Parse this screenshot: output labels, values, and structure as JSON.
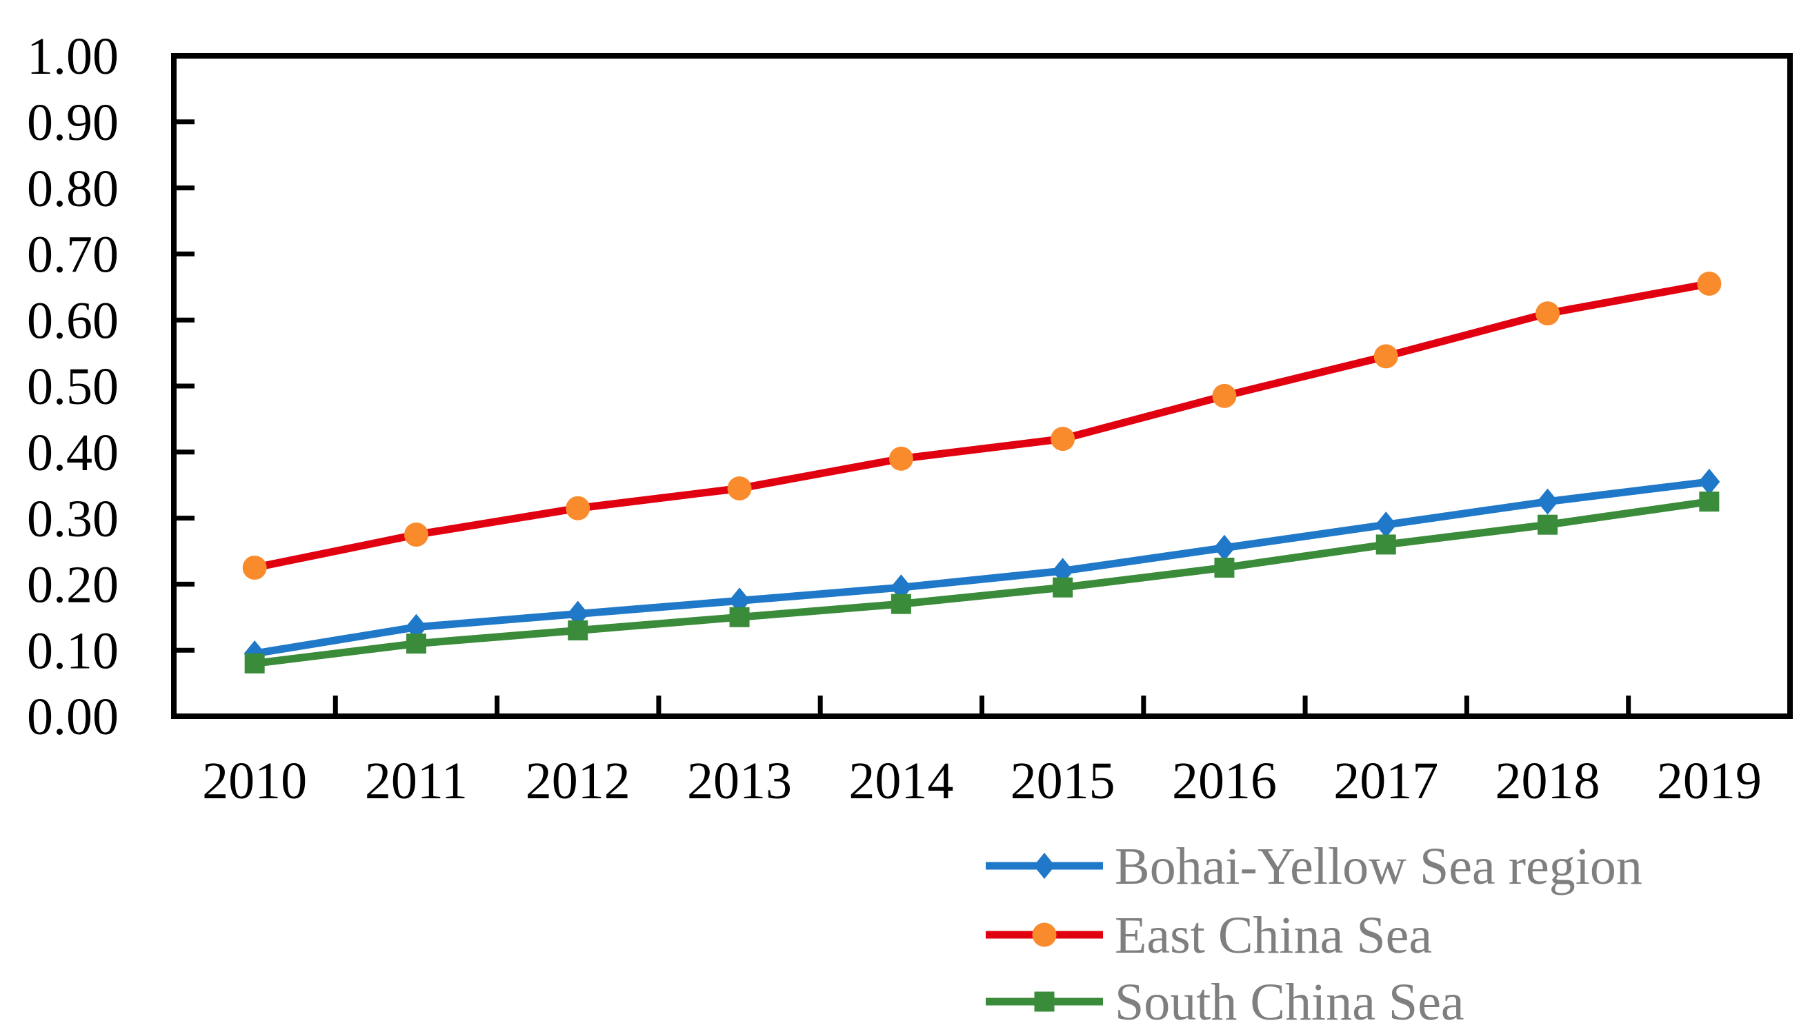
{
  "chart_data": {
    "type": "line",
    "title": "",
    "xlabel": "",
    "ylabel": "",
    "x_categories": [
      "2010",
      "2011",
      "2012",
      "2013",
      "2014",
      "2015",
      "2016",
      "2017",
      "2018",
      "2019"
    ],
    "series": [
      {
        "name": "Bohai-Yellow Sea region",
        "marker": "diamond",
        "line_color": "#1f78c8",
        "marker_color": "#1f78c8",
        "values": [
          0.095,
          0.135,
          0.155,
          0.175,
          0.195,
          0.22,
          0.255,
          0.29,
          0.325,
          0.355
        ]
      },
      {
        "name": "East China Sea",
        "marker": "circle",
        "line_color": "#e1000f",
        "marker_color": "#f98b2d",
        "values": [
          0.225,
          0.275,
          0.315,
          0.345,
          0.39,
          0.42,
          0.485,
          0.545,
          0.61,
          0.655
        ]
      },
      {
        "name": "South China Sea",
        "marker": "square",
        "line_color": "#3a8b3a",
        "marker_color": "#3a8b3a",
        "values": [
          0.08,
          0.11,
          0.13,
          0.15,
          0.17,
          0.195,
          0.225,
          0.26,
          0.29,
          0.325
        ]
      }
    ],
    "ylim": [
      0.0,
      1.0
    ],
    "ytick_step": 0.1,
    "ytick_labels": [
      "0.00",
      "0.10",
      "0.20",
      "0.30",
      "0.40",
      "0.50",
      "0.60",
      "0.70",
      "0.80",
      "0.90",
      "1.00"
    ],
    "grid": false,
    "plot_frame": true,
    "tick_direction": "in",
    "legend_position": "bottom-right",
    "colors": {
      "axis": "#000000",
      "tick_label": "#000000",
      "legend_text": "#7f7f7f",
      "background": "#ffffff"
    }
  }
}
